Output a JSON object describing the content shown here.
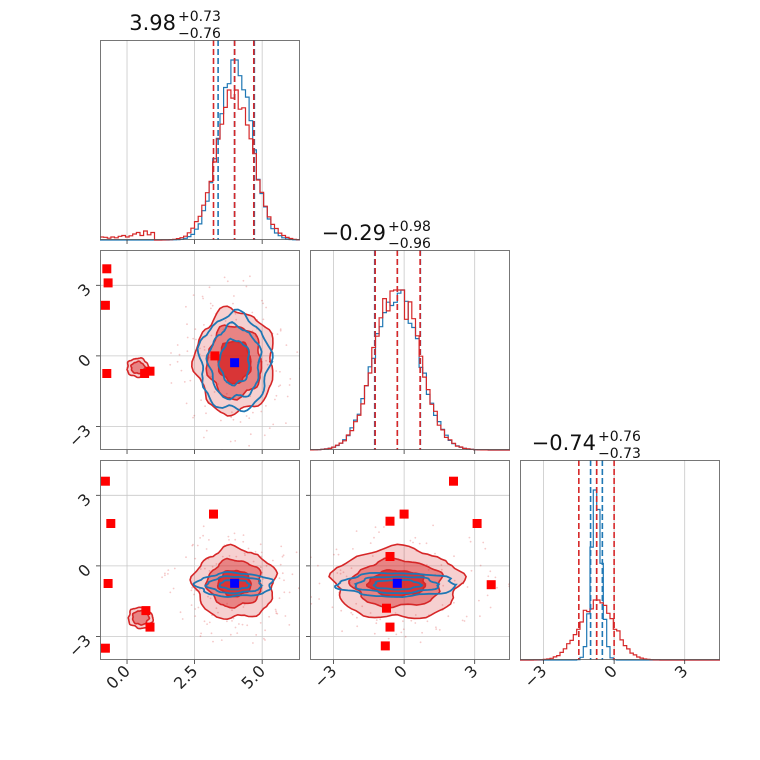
{
  "chart_data": {
    "type": "corner",
    "parameters": 3,
    "colors": {
      "a": "#1f77b4",
      "b": "#d62728",
      "marker": "#0000ff",
      "outlier": "#ff0000"
    },
    "grid": true,
    "titles": [
      {
        "value": "3.98",
        "plus": "+0.73",
        "minus": "−0.76"
      },
      {
        "value": "−0.29",
        "plus": "+0.98",
        "minus": "−0.96"
      },
      {
        "value": "−0.74",
        "plus": "+0.76",
        "minus": "−0.73"
      }
    ],
    "axes": [
      {
        "range": [
          -1.0,
          6.4
        ],
        "ticks": [
          0.0,
          2.5,
          5.0
        ],
        "tick_labels": [
          "0.0",
          "2.5",
          "5.0"
        ]
      },
      {
        "range": [
          -4.0,
          4.5
        ],
        "ticks": [
          -3,
          0,
          3
        ],
        "tick_labels": [
          "−3",
          "0",
          "3"
        ]
      },
      {
        "range": [
          -4.0,
          4.5
        ],
        "ticks": [
          -3,
          0,
          3
        ],
        "tick_labels": [
          "−3",
          "0",
          "3"
        ]
      }
    ],
    "truth": [
      3.98,
      -0.29,
      -0.74
    ],
    "quantile_lines": {
      "a": [
        [
          3.37,
          3.98,
          4.71
        ],
        [
          -1.25,
          -0.29,
          0.69
        ],
        [
          -1.0,
          -0.74,
          -0.5
        ]
      ],
      "b": [
        [
          3.2,
          3.98,
          4.69
        ],
        [
          -1.23,
          -0.29,
          0.68
        ],
        [
          -1.5,
          -0.74,
          0.0
        ]
      ]
    },
    "marginals": [
      {
        "a": {
          "mu": 4.0,
          "sigma": 0.6
        },
        "b": {
          "mu": 3.98,
          "sigma": 0.68,
          "tail": [
            0.02,
            0.018,
            0.012,
            0.02,
            0.015,
            0.025,
            0.03,
            0.02,
            0.028,
            0.04,
            0.05,
            0.03,
            0.06,
            0.035,
            0.05
          ]
        }
      },
      {
        "a": {
          "mu": -0.3,
          "sigma": 0.95
        },
        "b": {
          "mu": -0.3,
          "sigma": 0.95
        }
      },
      {
        "a": {
          "mu": -0.75,
          "sigma": 0.22
        },
        "b": {
          "mu": -0.74,
          "sigma": 0.72
        }
      }
    ],
    "joint_panels": [
      {
        "x_param": 0,
        "y_param": 1,
        "b_blobs": [
          {
            "cx": 3.98,
            "cy": -0.25,
            "rx": [
              0.6,
              1.0,
              1.45
            ],
            "ry": [
              0.9,
              1.55,
              2.2
            ]
          },
          {
            "cx": 0.4,
            "cy": -0.5,
            "rx": [
              0.25,
              0.4
            ],
            "ry": [
              0.25,
              0.4
            ]
          }
        ],
        "a_contours": {
          "cx": 3.98,
          "cy": -0.27,
          "rx": [
            0.55,
            0.95,
            1.3
          ],
          "ry": [
            0.95,
            1.55,
            2.05
          ]
        },
        "outliers": [
          [
            -0.75,
            3.7
          ],
          [
            -0.7,
            3.1
          ],
          [
            -0.8,
            2.15
          ],
          [
            -0.75,
            -0.75
          ],
          [
            0.65,
            -0.75
          ],
          [
            0.85,
            -0.65
          ],
          [
            3.25,
            0.0
          ]
        ]
      },
      {
        "x_param": 0,
        "y_param": 2,
        "b_blobs": [
          {
            "cx": 3.98,
            "cy": -0.74,
            "rx": [
              0.6,
              1.0,
              1.5
            ],
            "ry": [
              0.55,
              1.0,
              1.5
            ]
          },
          {
            "cx": 0.5,
            "cy": -2.2,
            "rx": [
              0.3,
              0.45
            ],
            "ry": [
              0.3,
              0.45
            ]
          }
        ],
        "a_contours": {
          "cx": 3.98,
          "cy": -0.8,
          "rx": [
            0.55,
            1.0,
            1.4
          ],
          "ry": [
            0.2,
            0.35,
            0.5
          ]
        },
        "outliers": [
          [
            -0.8,
            3.6
          ],
          [
            -0.6,
            1.8
          ],
          [
            -0.7,
            -0.75
          ],
          [
            0.7,
            -1.9
          ],
          [
            0.85,
            -2.6
          ],
          [
            3.2,
            2.2
          ],
          [
            -0.8,
            -3.5
          ]
        ]
      },
      {
        "x_param": 1,
        "y_param": 2,
        "b_blobs": [
          {
            "cx": -0.29,
            "cy": -0.74,
            "rx": [
              1.2,
              1.9,
              2.7
            ],
            "ry": [
              0.55,
              1.0,
              1.5
            ]
          }
        ],
        "a_contours": {
          "cx": -0.3,
          "cy": -0.8,
          "rx": [
            1.0,
            1.75,
            2.5
          ],
          "ry": [
            0.2,
            0.35,
            0.5
          ]
        },
        "outliers": [
          [
            -0.6,
            0.4
          ],
          [
            -0.6,
            1.9
          ],
          [
            0.0,
            2.2
          ],
          [
            2.1,
            3.6
          ],
          [
            3.1,
            1.8
          ],
          [
            3.7,
            -0.8
          ],
          [
            -0.75,
            -1.8
          ],
          [
            -0.6,
            -2.6
          ],
          [
            -0.8,
            -3.4
          ]
        ]
      }
    ]
  }
}
